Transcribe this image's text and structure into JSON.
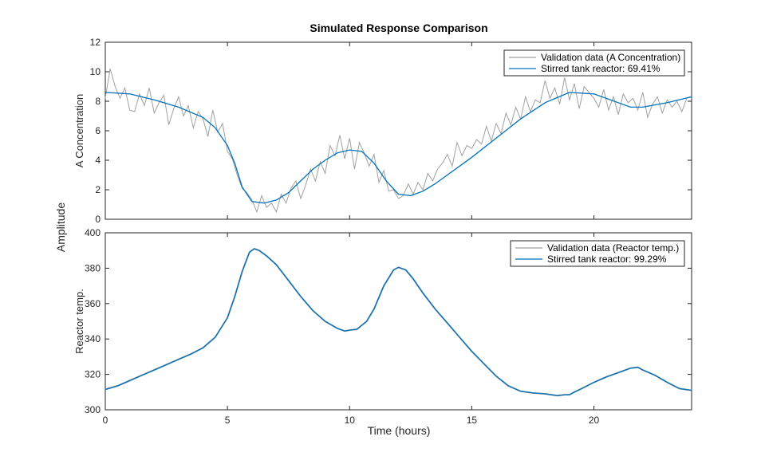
{
  "chart_data": {
    "type": "line",
    "title": "Simulated Response Comparison",
    "xlabel": "Time (hours)",
    "shared_ylabel": "Amplitude",
    "xlim": [
      0,
      24
    ],
    "xticks": [
      "0",
      "5",
      "10",
      "15",
      "20"
    ],
    "colors": {
      "validation": "#a0a0a0",
      "model": "#0072bd",
      "axes": "#262626",
      "grid": "#dcdcdc"
    },
    "panels": [
      {
        "ylabel": "A Concentration",
        "ylim": [
          0,
          12
        ],
        "yticks": [
          "0",
          "2",
          "4",
          "6",
          "8",
          "10",
          "12"
        ],
        "legend": [
          "Validation data (A Concentration)",
          "Stirred tank reactor: 69.41%"
        ],
        "legend_location": "top-right",
        "model_x": [
          0,
          1,
          2,
          3,
          4,
          4.5,
          5,
          5.3,
          5.6,
          6,
          6.5,
          7,
          7.5,
          8,
          8.5,
          9,
          9.5,
          10,
          10.5,
          11,
          11.5,
          12,
          12.5,
          13,
          13.5,
          14,
          15,
          16,
          17,
          18,
          19,
          20,
          21,
          21.5,
          22,
          23,
          24
        ],
        "model_y": [
          8.6,
          8.5,
          8.1,
          7.6,
          6.9,
          6.2,
          5.0,
          3.8,
          2.2,
          1.2,
          1.1,
          1.3,
          1.8,
          2.6,
          3.4,
          4.0,
          4.5,
          4.7,
          4.6,
          3.8,
          2.6,
          1.7,
          1.6,
          1.9,
          2.4,
          3.0,
          4.2,
          5.5,
          6.8,
          7.9,
          8.6,
          8.5,
          7.9,
          7.6,
          7.6,
          7.9,
          8.3
        ],
        "validation_x": [
          0,
          0.2,
          0.4,
          0.6,
          0.8,
          1.0,
          1.2,
          1.4,
          1.6,
          1.8,
          2.0,
          2.2,
          2.4,
          2.6,
          2.8,
          3.0,
          3.2,
          3.4,
          3.6,
          3.8,
          4.0,
          4.2,
          4.4,
          4.6,
          4.8,
          5.0,
          5.2,
          5.4,
          5.6,
          5.8,
          6.0,
          6.2,
          6.4,
          6.6,
          6.8,
          7.0,
          7.2,
          7.4,
          7.6,
          7.8,
          8.0,
          8.2,
          8.4,
          8.6,
          8.8,
          9.0,
          9.2,
          9.4,
          9.6,
          9.8,
          10.0,
          10.2,
          10.4,
          10.6,
          10.8,
          11.0,
          11.2,
          11.4,
          11.6,
          11.8,
          12.0,
          12.2,
          12.4,
          12.6,
          12.8,
          13.0,
          13.2,
          13.4,
          13.6,
          13.8,
          14.0,
          14.2,
          14.4,
          14.6,
          14.8,
          15.0,
          15.2,
          15.4,
          15.6,
          15.8,
          16.0,
          16.2,
          16.4,
          16.6,
          16.8,
          17.0,
          17.2,
          17.4,
          17.6,
          17.8,
          18.0,
          18.2,
          18.4,
          18.6,
          18.8,
          19.0,
          19.2,
          19.4,
          19.6,
          19.8,
          20.0,
          20.2,
          20.4,
          20.6,
          20.8,
          21.0,
          21.2,
          21.4,
          21.6,
          21.8,
          22.0,
          22.2,
          22.4,
          22.6,
          22.8,
          23.0,
          23.2,
          23.4,
          23.6,
          23.8,
          24.0
        ],
        "validation_y": [
          8.2,
          10.2,
          9.0,
          8.2,
          8.9,
          7.4,
          7.3,
          8.5,
          7.7,
          8.9,
          7.2,
          7.9,
          8.4,
          6.4,
          7.5,
          8.3,
          7.0,
          7.7,
          6.2,
          7.3,
          6.8,
          5.6,
          7.4,
          5.9,
          6.5,
          4.6,
          4.1,
          3.0,
          2.1,
          1.8,
          1.3,
          0.5,
          1.6,
          0.8,
          1.1,
          0.5,
          1.7,
          1.1,
          2.1,
          2.6,
          1.4,
          2.3,
          3.4,
          2.6,
          3.9,
          3.1,
          5.0,
          4.3,
          5.7,
          4.1,
          5.5,
          3.4,
          5.2,
          4.5,
          3.6,
          4.4,
          2.5,
          3.3,
          1.9,
          2.0,
          1.4,
          1.6,
          2.4,
          1.7,
          2.5,
          2.0,
          3.1,
          2.6,
          3.4,
          3.8,
          4.4,
          3.6,
          5.2,
          4.3,
          5.0,
          4.8,
          5.4,
          5.1,
          6.3,
          5.3,
          6.5,
          5.8,
          7.2,
          6.4,
          7.6,
          6.8,
          8.3,
          7.3,
          8.1,
          7.9,
          9.4,
          8.2,
          8.9,
          7.8,
          9.6,
          8.1,
          9.2,
          7.5,
          9.0,
          8.6,
          8.2,
          7.6,
          8.8,
          7.4,
          8.3,
          7.1,
          8.5,
          7.9,
          8.2,
          7.4,
          8.6,
          6.9,
          7.8,
          8.3,
          7.2,
          8.1,
          7.6,
          8.0,
          7.3,
          8.2,
          8.3
        ]
      },
      {
        "ylabel": "Reactor temp.",
        "ylim": [
          300,
          400
        ],
        "yticks": [
          "300",
          "320",
          "340",
          "360",
          "380",
          "400"
        ],
        "legend": [
          "Validation data (Reactor temp.)",
          "Stirred tank reactor: 99.29%"
        ],
        "legend_location": "top-right",
        "model_x": [
          0,
          0.5,
          1,
          1.5,
          2,
          2.5,
          3,
          3.5,
          4,
          4.5,
          5,
          5.3,
          5.6,
          5.9,
          6.1,
          6.3,
          6.6,
          7,
          7.5,
          8,
          8.5,
          9,
          9.5,
          9.8,
          10,
          10.3,
          10.7,
          11,
          11.4,
          11.8,
          12,
          12.3,
          12.6,
          13,
          13.5,
          14,
          14.5,
          15,
          15.5,
          16,
          16.5,
          17,
          17.5,
          18,
          18.5,
          18.8,
          19,
          19.2,
          19.5,
          20,
          20.5,
          21,
          21.5,
          21.8,
          22,
          22.5,
          23,
          23.5,
          24
        ],
        "model_y": [
          311.5,
          313.5,
          316.5,
          319.5,
          322.5,
          325.5,
          328.5,
          331.5,
          335,
          341,
          352,
          364,
          378,
          389,
          391,
          390,
          387,
          382,
          373,
          364,
          356,
          350,
          346,
          344.5,
          345,
          345.5,
          350,
          357,
          370,
          379,
          380.5,
          379,
          374,
          366,
          357,
          349,
          341,
          333,
          326,
          319,
          313.5,
          310.5,
          309.5,
          309,
          308,
          308.5,
          308.5,
          310,
          312,
          315.5,
          318.5,
          321,
          323.5,
          324,
          322.5,
          319.5,
          315.5,
          312,
          311
        ]
      }
    ]
  }
}
